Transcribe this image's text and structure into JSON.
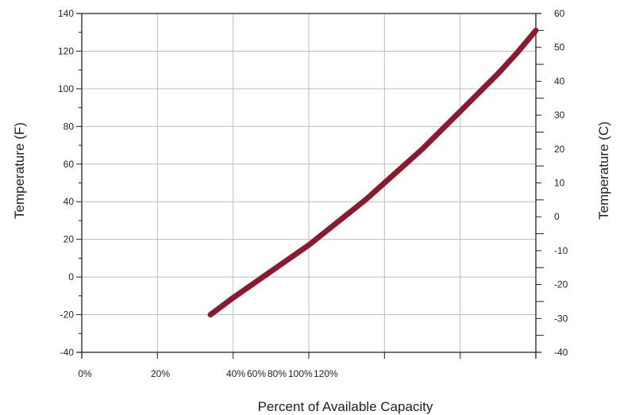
{
  "chart_data": {
    "type": "line",
    "title": "",
    "xlabel": "Percent of Available Capacity",
    "ylabel": "Temperature (F)",
    "y2label": "Temperature (C)",
    "x_tick_labels": [
      "0%",
      "20%",
      "40%",
      "60%",
      "80%",
      "100%",
      "120%"
    ],
    "xlim": [
      0,
      120
    ],
    "ylim": [
      -40,
      140
    ],
    "y_ticks": [
      -40,
      -20,
      0,
      20,
      40,
      60,
      80,
      100,
      120,
      140
    ],
    "y2lim": [
      -40,
      60
    ],
    "y2_ticks": [
      -40,
      -30,
      -20,
      -10,
      0,
      10,
      20,
      30,
      40,
      50,
      60
    ],
    "grid": true,
    "legend": "none",
    "line_color": "#8b1a2f",
    "series": [
      {
        "x": [
          34,
          40,
          45,
          50,
          55,
          60,
          65,
          70,
          75,
          80,
          85,
          90,
          95,
          100,
          105,
          110,
          115,
          120
        ],
        "values": [
          -20,
          -11,
          -4,
          3,
          10,
          17,
          25,
          33,
          41,
          50,
          59,
          68,
          78,
          88,
          98,
          108,
          119,
          131
        ]
      }
    ]
  }
}
